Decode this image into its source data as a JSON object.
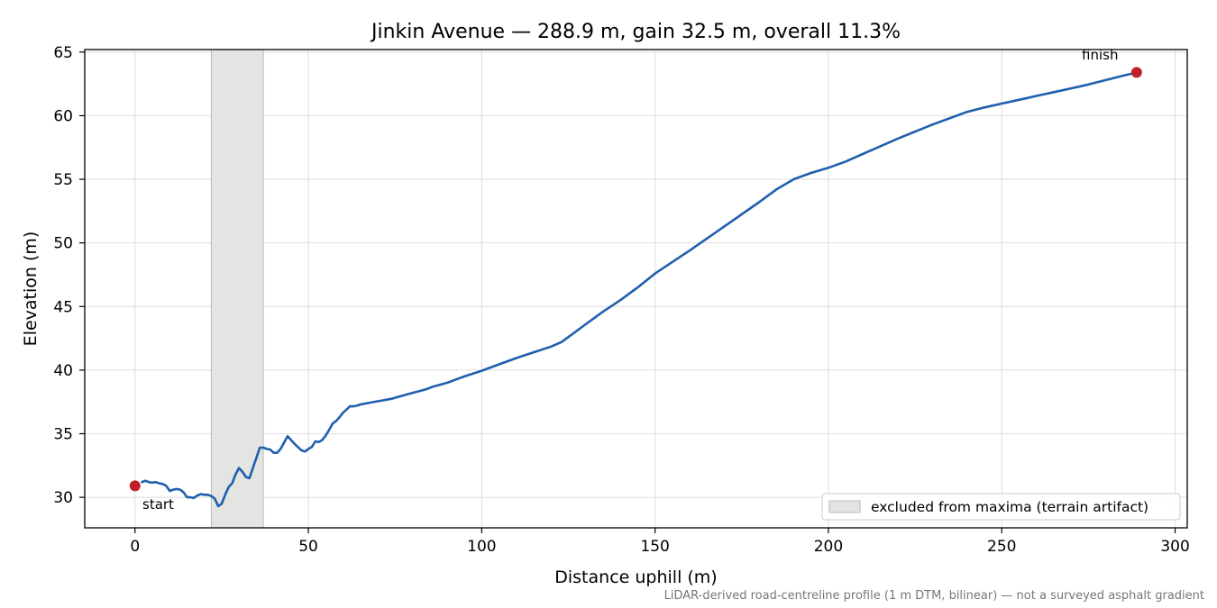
{
  "chart_data": {
    "type": "line",
    "title": "Jinkin Avenue — 288.9 m, gain 32.5 m, overall 11.3%",
    "xlabel": "Distance uphill (m)",
    "ylabel": "Elevation (m)",
    "xlim": [
      -14.5,
      303.5
    ],
    "ylim": [
      27.6,
      65.2
    ],
    "xticks": [
      0,
      50,
      100,
      150,
      200,
      250,
      300
    ],
    "yticks": [
      30,
      35,
      40,
      45,
      50,
      55,
      60,
      65
    ],
    "grid": true,
    "legend_position": "lower-right",
    "line_color": "#1f5fad",
    "marker_color": "#c0202a",
    "band_color": "#e4e4e3",
    "excluded_band": {
      "x0": 22,
      "x1": 37,
      "label": "excluded from maxima (terrain artifact)"
    },
    "series": [
      {
        "x": [
          2,
          3,
          4,
          5,
          6,
          7,
          8,
          9,
          10,
          11,
          12,
          13,
          14,
          15,
          16,
          17,
          18,
          19,
          20,
          21,
          22,
          23,
          24,
          25,
          26,
          27,
          28,
          29,
          30,
          31,
          32,
          33,
          34,
          35,
          36,
          37,
          38,
          39,
          40,
          41,
          42,
          44,
          46,
          48,
          49,
          50,
          51,
          52,
          53,
          54,
          55,
          56,
          57,
          58,
          59,
          60,
          61,
          62,
          63,
          64,
          65,
          66,
          67,
          68,
          70,
          72,
          74,
          76,
          78,
          80,
          82,
          84,
          86,
          88,
          90,
          95,
          100,
          105,
          110,
          115,
          120,
          123,
          126,
          130,
          135,
          140,
          145,
          150,
          155,
          160,
          170,
          180,
          185,
          190,
          195,
          200,
          205,
          210,
          220,
          230,
          240,
          245,
          250,
          255,
          260,
          265,
          270,
          275,
          280,
          285,
          289
        ],
        "y": [
          31.2,
          31.3,
          31.2,
          31.15,
          31.2,
          31.1,
          31.05,
          30.9,
          30.5,
          30.6,
          30.65,
          30.6,
          30.4,
          30.0,
          30.0,
          29.95,
          30.15,
          30.25,
          30.2,
          30.2,
          30.1,
          29.9,
          29.3,
          29.5,
          30.2,
          30.8,
          31.1,
          31.8,
          32.3,
          32.0,
          31.6,
          31.5,
          32.3,
          33.1,
          33.9,
          33.9,
          33.8,
          33.75,
          33.5,
          33.5,
          33.8,
          34.8,
          34.2,
          33.7,
          33.6,
          33.8,
          33.95,
          34.4,
          34.35,
          34.5,
          34.85,
          35.3,
          35.8,
          36.0,
          36.3,
          36.65,
          36.9,
          37.15,
          37.15,
          37.2,
          37.3,
          37.35,
          37.4,
          37.45,
          37.55,
          37.65,
          37.75,
          37.9,
          38.05,
          38.2,
          38.35,
          38.5,
          38.7,
          38.85,
          39.0,
          39.5,
          39.95,
          40.45,
          40.95,
          41.4,
          41.85,
          42.2,
          42.8,
          43.6,
          44.6,
          45.5,
          46.5,
          47.6,
          48.5,
          49.4,
          51.3,
          53.2,
          54.2,
          55.0,
          55.5,
          55.9,
          56.4,
          57.0,
          58.2,
          59.3,
          60.3,
          60.65,
          60.95,
          61.25,
          61.55,
          61.85,
          62.15,
          62.45,
          62.8,
          63.15,
          63.4
        ]
      }
    ],
    "start": {
      "x": 0,
      "y": 30.9,
      "label": "start"
    },
    "finish": {
      "x": 288.9,
      "y": 63.4,
      "label": "finish"
    }
  },
  "footnote": "LiDAR-derived road-centreline profile (1 m DTM, bilinear) — not a surveyed asphalt gradient"
}
